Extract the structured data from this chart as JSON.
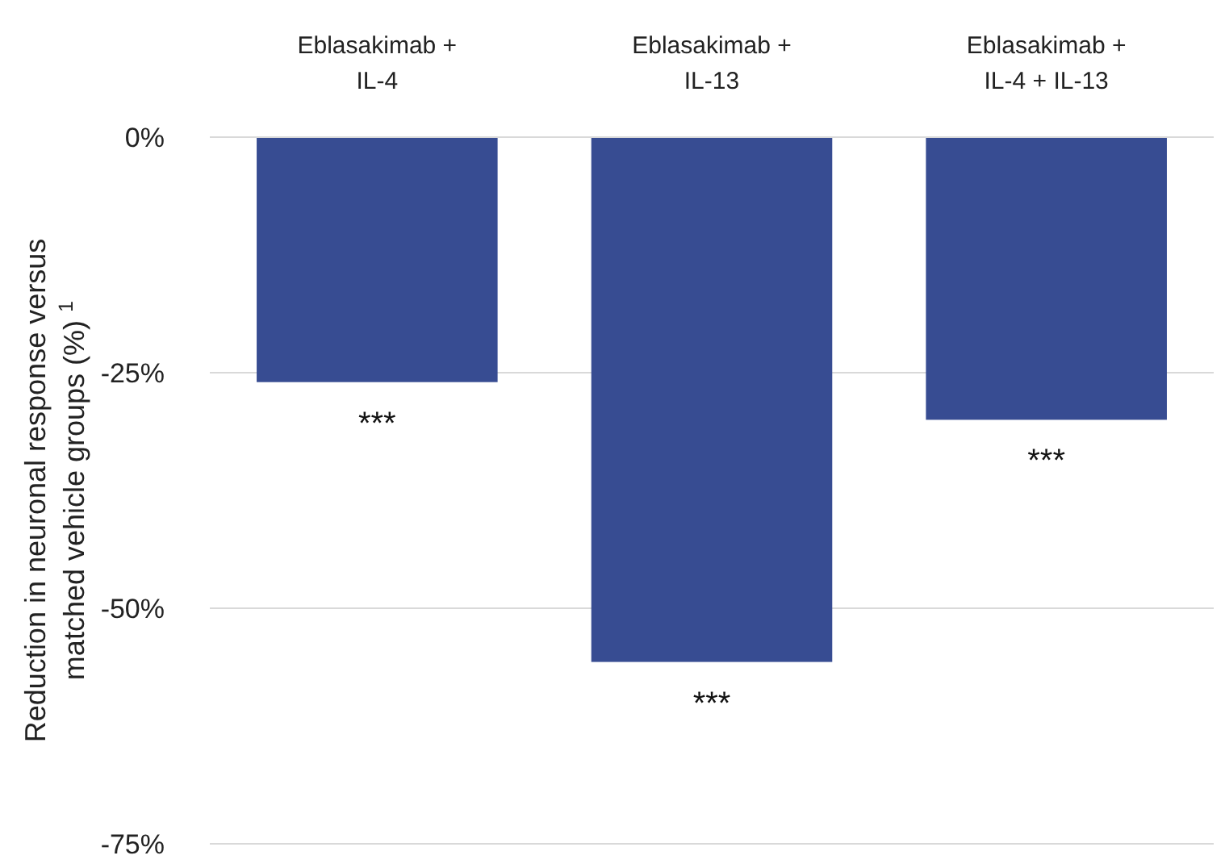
{
  "chart_data": {
    "type": "bar",
    "categories": [
      "Eblasakimab + IL-4",
      "Eblasakimab + IL-13",
      "Eblasakimab + IL-4 + IL-13"
    ],
    "values": [
      -26,
      -55.7,
      -30
    ],
    "color": "#374c92",
    "ylabel": "Reduction in neuronal response versus matched vehicle groups (%) $^{1}$",
    "ylim": [
      -75,
      0
    ],
    "yticks": [
      {
        "value": 0,
        "label": "0%"
      },
      {
        "value": -25,
        "label": "-25%"
      },
      {
        "value": -50,
        "label": "-50%"
      },
      {
        "value": -75,
        "label": "-75%"
      }
    ],
    "grid": "y",
    "annotations": [
      {
        "text": "***",
        "x": "Eblasakimab + IL-4",
        "y": -26
      },
      {
        "text": "***",
        "x": "Eblasakimab + IL-13",
        "y": -55.7
      },
      {
        "text": "***",
        "x": "Eblasakimab + IL-4 + IL-13",
        "y": -30
      }
    ]
  }
}
